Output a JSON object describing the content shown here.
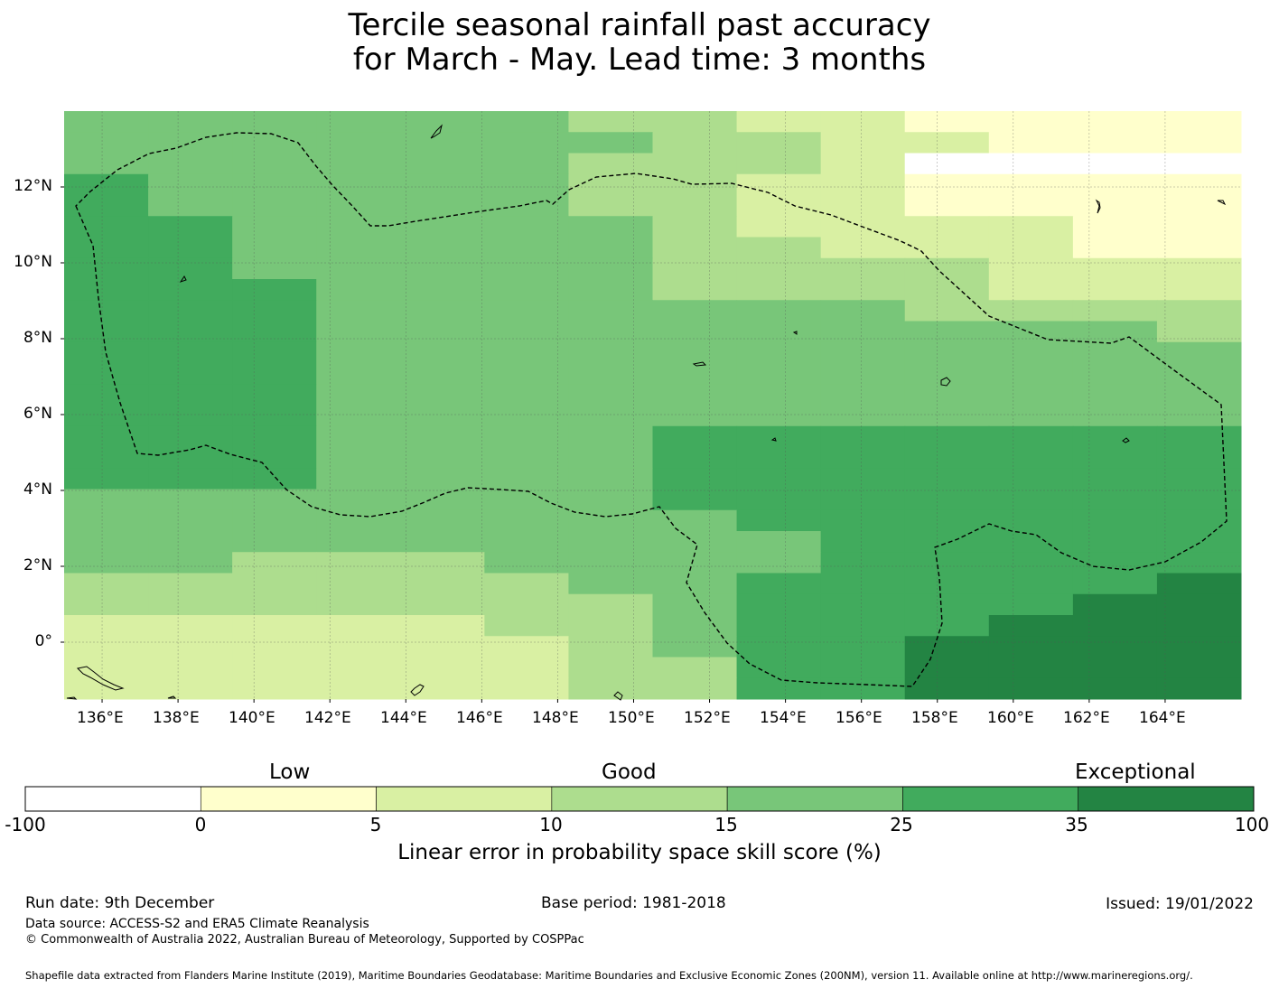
{
  "title": {
    "line1": "Tercile seasonal rainfall past accuracy",
    "line2": "for March - May. Lead time: 3 months"
  },
  "map": {
    "x_ticks": [
      "136°E",
      "138°E",
      "140°E",
      "142°E",
      "144°E",
      "146°E",
      "148°E",
      "150°E",
      "152°E",
      "154°E",
      "156°E",
      "158°E",
      "160°E",
      "162°E",
      "164°E"
    ],
    "y_ticks": [
      "12°N",
      "10°N",
      "8°N",
      "6°N",
      "4°N",
      "2°N",
      "0°"
    ],
    "lon_range": [
      135,
      166
    ],
    "lat_range": [
      -1.5,
      14
    ],
    "grid_color": "#555555",
    "eez_line": "dashed black",
    "categories": [
      {
        "range": "-100 to 0",
        "color": "#ffffff"
      },
      {
        "range": "0 to 5",
        "color": "#ffffcc"
      },
      {
        "range": "5 to 10",
        "color": "#d9f0a3"
      },
      {
        "range": "10 to 15",
        "color": "#addd8e"
      },
      {
        "range": "15 to 25",
        "color": "#78c679"
      },
      {
        "range": "25 to 35",
        "color": "#41ab5d"
      },
      {
        "range": "35 to 100",
        "color": "#238443"
      }
    ],
    "grid_rows": [
      "44444433221111",
      "44444443322111",
      "44444433320000",
      "54444433221111",
      "54444433221111",
      "55444443222211",
      "55444443322211",
      "55444443333222",
      "55544443333222",
      "55544444443333",
      "55544444444443",
      "55544444444444",
      "55544444444444",
      "55544444444444",
      "55544444444444",
      "55544445555555",
      "55544445555555",
      "55544445555555",
      "44444445555555",
      "44444444555555",
      "44444444455555",
      "44333444455555",
      "33333344555556",
      "33333334555566",
      "22222334555666",
      "22222234556666",
      "22222233556666",
      "22222233556666"
    ]
  },
  "colorbar": {
    "words": [
      "Low",
      "Good",
      "Exceptional"
    ],
    "ticks": [
      "-100",
      "0",
      "5",
      "10",
      "15",
      "25",
      "35",
      "100"
    ],
    "colors": [
      "#ffffff",
      "#ffffcc",
      "#d9f0a3",
      "#addd8e",
      "#78c679",
      "#41ab5d",
      "#238443"
    ],
    "label": "Linear error in probability space skill score (%)"
  },
  "footer": {
    "run_date": "Run date: 9th December",
    "base_period": "Base period: 1981-2018",
    "issued": "Issued: 19/01/2022",
    "data_source": "Data source: ACCESS-S2 and ERA5 Climate Reanalysis",
    "copyright": "© Commonwealth of Australia 2022, Australian Bureau of Meteorology, Supported by COSPPac",
    "shapefile": "Shapefile data extracted from Flanders Marine Institute (2019), Maritime Boundaries Geodatabase: Maritime Boundaries and Exclusive Economic Zones (200NM), version 11. Available online at http://www.marineregions.org/."
  }
}
